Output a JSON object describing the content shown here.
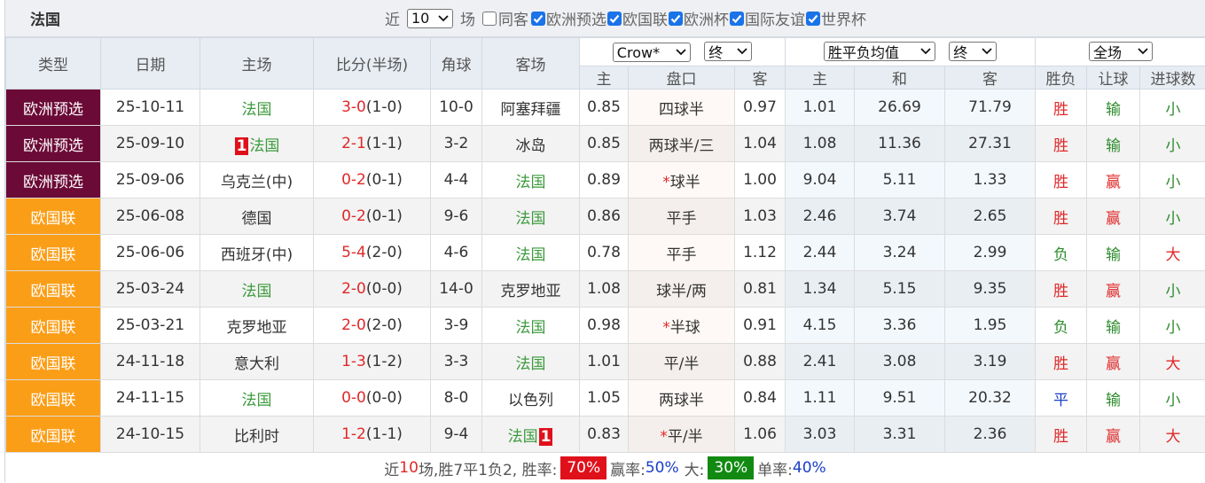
{
  "header": {
    "title": "法国",
    "recent_prefix": "近",
    "recent_count": "10",
    "recent_suffix": "场",
    "same_opponent": "同客",
    "filters": [
      "欧洲预选",
      "欧国联",
      "欧洲杯",
      "国际友谊",
      "世界杯"
    ]
  },
  "table": {
    "columns": [
      "类型",
      "日期",
      "主场",
      "比分(半场)",
      "角球",
      "客场"
    ],
    "selects": {
      "company": "Crow*",
      "company_stage": "终",
      "avg": "胜平负均值",
      "avg_stage": "终",
      "period": "全场"
    },
    "subcolumns": [
      "主",
      "盘口",
      "客",
      "主",
      "和",
      "客",
      "胜负",
      "让球",
      "进球数"
    ],
    "rows": [
      {
        "type": "欧洲预选",
        "bg": "#6b0a36",
        "date": "25-10-11",
        "home": "法国",
        "home_color": "#3c9a3c",
        "score": "3-0",
        "half": "(1-0)",
        "corners": "10-0",
        "away": "阿塞拜疆",
        "away_color": "#333333",
        "odds_home": "0.85",
        "handicap": "四球半",
        "odds_away": "0.97",
        "avg_win": "1.01",
        "avg_draw": "26.69",
        "avg_loss": "71.79",
        "result": "胜",
        "result_color": "#e02828",
        "handicap_result": "输",
        "handicap_color": "#2e8b2e",
        "goals": "小",
        "goals_color": "#2e8b2e"
      },
      {
        "type": "欧洲预选",
        "bg": "#6b0a36",
        "date": "25-09-10",
        "home_rank": "1",
        "home": "法国",
        "home_color": "#3c9a3c",
        "score": "2-1",
        "half": "(1-1)",
        "corners": "3-2",
        "away": "冰岛",
        "away_color": "#333333",
        "odds_home": "0.85",
        "handicap": "两球半/三",
        "odds_away": "1.04",
        "avg_win": "1.08",
        "avg_draw": "11.36",
        "avg_loss": "27.31",
        "result": "胜",
        "result_color": "#e02828",
        "handicap_result": "输",
        "handicap_color": "#2e8b2e",
        "goals": "小",
        "goals_color": "#2e8b2e"
      },
      {
        "type": "欧洲预选",
        "bg": "#6b0a36",
        "date": "25-09-06",
        "home": "乌克兰(中)",
        "home_color": "#333333",
        "score": "0-2",
        "half": "(0-1)",
        "corners": "4-4",
        "away": "法国",
        "away_color": "#3c9a3c",
        "odds_home": "0.89",
        "star": "*",
        "handicap": "球半",
        "odds_away": "1.00",
        "avg_win": "9.04",
        "avg_draw": "5.11",
        "avg_loss": "1.33",
        "result": "胜",
        "result_color": "#e02828",
        "handicap_result": "赢",
        "handicap_color": "#e02828",
        "goals": "小",
        "goals_color": "#2e8b2e"
      },
      {
        "type": "欧国联",
        "bg": "#fb9e17",
        "date": "25-06-08",
        "home": "德国",
        "home_color": "#333333",
        "score": "0-2",
        "half": "(0-1)",
        "corners": "9-6",
        "away": "法国",
        "away_color": "#3c9a3c",
        "odds_home": "0.86",
        "handicap": "平手",
        "odds_away": "1.03",
        "avg_win": "2.46",
        "avg_draw": "3.74",
        "avg_loss": "2.65",
        "result": "胜",
        "result_color": "#e02828",
        "handicap_result": "赢",
        "handicap_color": "#e02828",
        "goals": "小",
        "goals_color": "#2e8b2e"
      },
      {
        "type": "欧国联",
        "bg": "#fb9e17",
        "date": "25-06-06",
        "home": "西班牙(中)",
        "home_color": "#333333",
        "score": "5-4",
        "half": "(2-0)",
        "corners": "4-6",
        "away": "法国",
        "away_color": "#3c9a3c",
        "odds_home": "0.78",
        "handicap": "平手",
        "odds_away": "1.12",
        "avg_win": "2.44",
        "avg_draw": "3.24",
        "avg_loss": "2.99",
        "result": "负",
        "result_color": "#2e8b2e",
        "handicap_result": "输",
        "handicap_color": "#2e8b2e",
        "goals": "大",
        "goals_color": "#e02828"
      },
      {
        "type": "欧国联",
        "bg": "#fb9e17",
        "date": "25-03-24",
        "home": "法国",
        "home_color": "#3c9a3c",
        "score": "2-0",
        "half": "(0-0)",
        "corners": "14-0",
        "away": "克罗地亚",
        "away_color": "#333333",
        "odds_home": "1.08",
        "handicap": "球半/两",
        "odds_away": "0.81",
        "avg_win": "1.34",
        "avg_draw": "5.15",
        "avg_loss": "9.35",
        "result": "胜",
        "result_color": "#e02828",
        "handicap_result": "赢",
        "handicap_color": "#e02828",
        "goals": "小",
        "goals_color": "#2e8b2e"
      },
      {
        "type": "欧国联",
        "bg": "#fb9e17",
        "date": "25-03-21",
        "home": "克罗地亚",
        "home_color": "#333333",
        "score": "2-0",
        "half": "(2-0)",
        "corners": "3-9",
        "away": "法国",
        "away_color": "#3c9a3c",
        "odds_home": "0.98",
        "star": "*",
        "handicap": "半球",
        "odds_away": "0.91",
        "avg_win": "4.15",
        "avg_draw": "3.36",
        "avg_loss": "1.95",
        "result": "负",
        "result_color": "#2e8b2e",
        "handicap_result": "输",
        "handicap_color": "#2e8b2e",
        "goals": "小",
        "goals_color": "#2e8b2e"
      },
      {
        "type": "欧国联",
        "bg": "#fb9e17",
        "date": "24-11-18",
        "home": "意大利",
        "home_color": "#333333",
        "score": "1-3",
        "half": "(1-2)",
        "corners": "3-3",
        "away": "法国",
        "away_color": "#3c9a3c",
        "odds_home": "1.01",
        "handicap": "平/半",
        "odds_away": "0.88",
        "avg_win": "2.41",
        "avg_draw": "3.08",
        "avg_loss": "3.19",
        "result": "胜",
        "result_color": "#e02828",
        "handicap_result": "赢",
        "handicap_color": "#e02828",
        "goals": "大",
        "goals_color": "#e02828"
      },
      {
        "type": "欧国联",
        "bg": "#fb9e17",
        "date": "24-11-15",
        "home": "法国",
        "home_color": "#3c9a3c",
        "score": "0-0",
        "half": "(0-0)",
        "corners": "8-0",
        "away": "以色列",
        "away_color": "#333333",
        "odds_home": "1.05",
        "handicap": "两球半",
        "odds_away": "0.84",
        "avg_win": "1.11",
        "avg_draw": "9.51",
        "avg_loss": "20.32",
        "result": "平",
        "result_color": "#1a3ec8",
        "handicap_result": "输",
        "handicap_color": "#2e8b2e",
        "goals": "小",
        "goals_color": "#2e8b2e"
      },
      {
        "type": "欧国联",
        "bg": "#fb9e17",
        "date": "24-10-15",
        "home": "比利时",
        "home_color": "#333333",
        "score": "1-2",
        "half": "(1-1)",
        "corners": "9-4",
        "away": "法国",
        "away_rank": "1",
        "away_color": "#3c9a3c",
        "odds_home": "0.83",
        "star": "*",
        "handicap": "平/半",
        "odds_away": "1.06",
        "avg_win": "3.03",
        "avg_draw": "3.31",
        "avg_loss": "2.36",
        "result": "胜",
        "result_color": "#e02828",
        "handicap_result": "赢",
        "handicap_color": "#e02828",
        "goals": "大",
        "goals_color": "#e02828"
      }
    ]
  },
  "footer": {
    "prefix": "近",
    "count": "10",
    "record": "场,胜7平1负2, 胜率:",
    "win_rate": "70%",
    "cover_label": "赢率:",
    "cover_rate": "50%",
    "over_label": "大:",
    "over_rate": "30%",
    "odd_label": "单率:",
    "odd_rate": "40%"
  }
}
